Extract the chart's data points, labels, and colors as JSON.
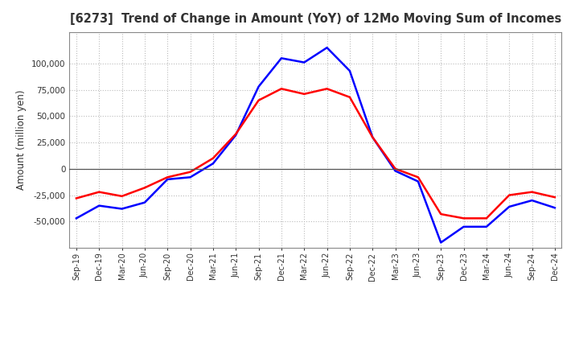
{
  "title": "[6273]  Trend of Change in Amount (YoY) of 12Mo Moving Sum of Incomes",
  "ylabel": "Amount (million yen)",
  "x_labels": [
    "Sep-19",
    "Dec-19",
    "Mar-20",
    "Jun-20",
    "Sep-20",
    "Dec-20",
    "Mar-21",
    "Jun-21",
    "Sep-21",
    "Dec-21",
    "Mar-22",
    "Jun-22",
    "Sep-22",
    "Dec-22",
    "Mar-23",
    "Jun-23",
    "Sep-23",
    "Dec-23",
    "Mar-24",
    "Jun-24",
    "Sep-24",
    "Dec-24"
  ],
  "ordinary_income": [
    -47000,
    -35000,
    -38000,
    -32000,
    -10000,
    -8000,
    5000,
    32000,
    78000,
    105000,
    101000,
    115000,
    93000,
    30000,
    -2000,
    -12000,
    -70000,
    -55000,
    -55000,
    -36000,
    -30000,
    -37000
  ],
  "net_income": [
    -28000,
    -22000,
    -26000,
    -18000,
    -8000,
    -3000,
    10000,
    33000,
    65000,
    76000,
    71000,
    76000,
    68000,
    30000,
    0,
    -8000,
    -43000,
    -47000,
    -47000,
    -25000,
    -22000,
    -27000
  ],
  "ordinary_color": "#0000FF",
  "net_color": "#FF0000",
  "ylim": [
    -75000,
    130000
  ],
  "yticks": [
    -50000,
    -25000,
    0,
    25000,
    50000,
    75000,
    100000
  ],
  "bg_color": "#FFFFFF",
  "grid_color": "#BBBBBB",
  "line_width": 1.8,
  "title_color": "#333333"
}
